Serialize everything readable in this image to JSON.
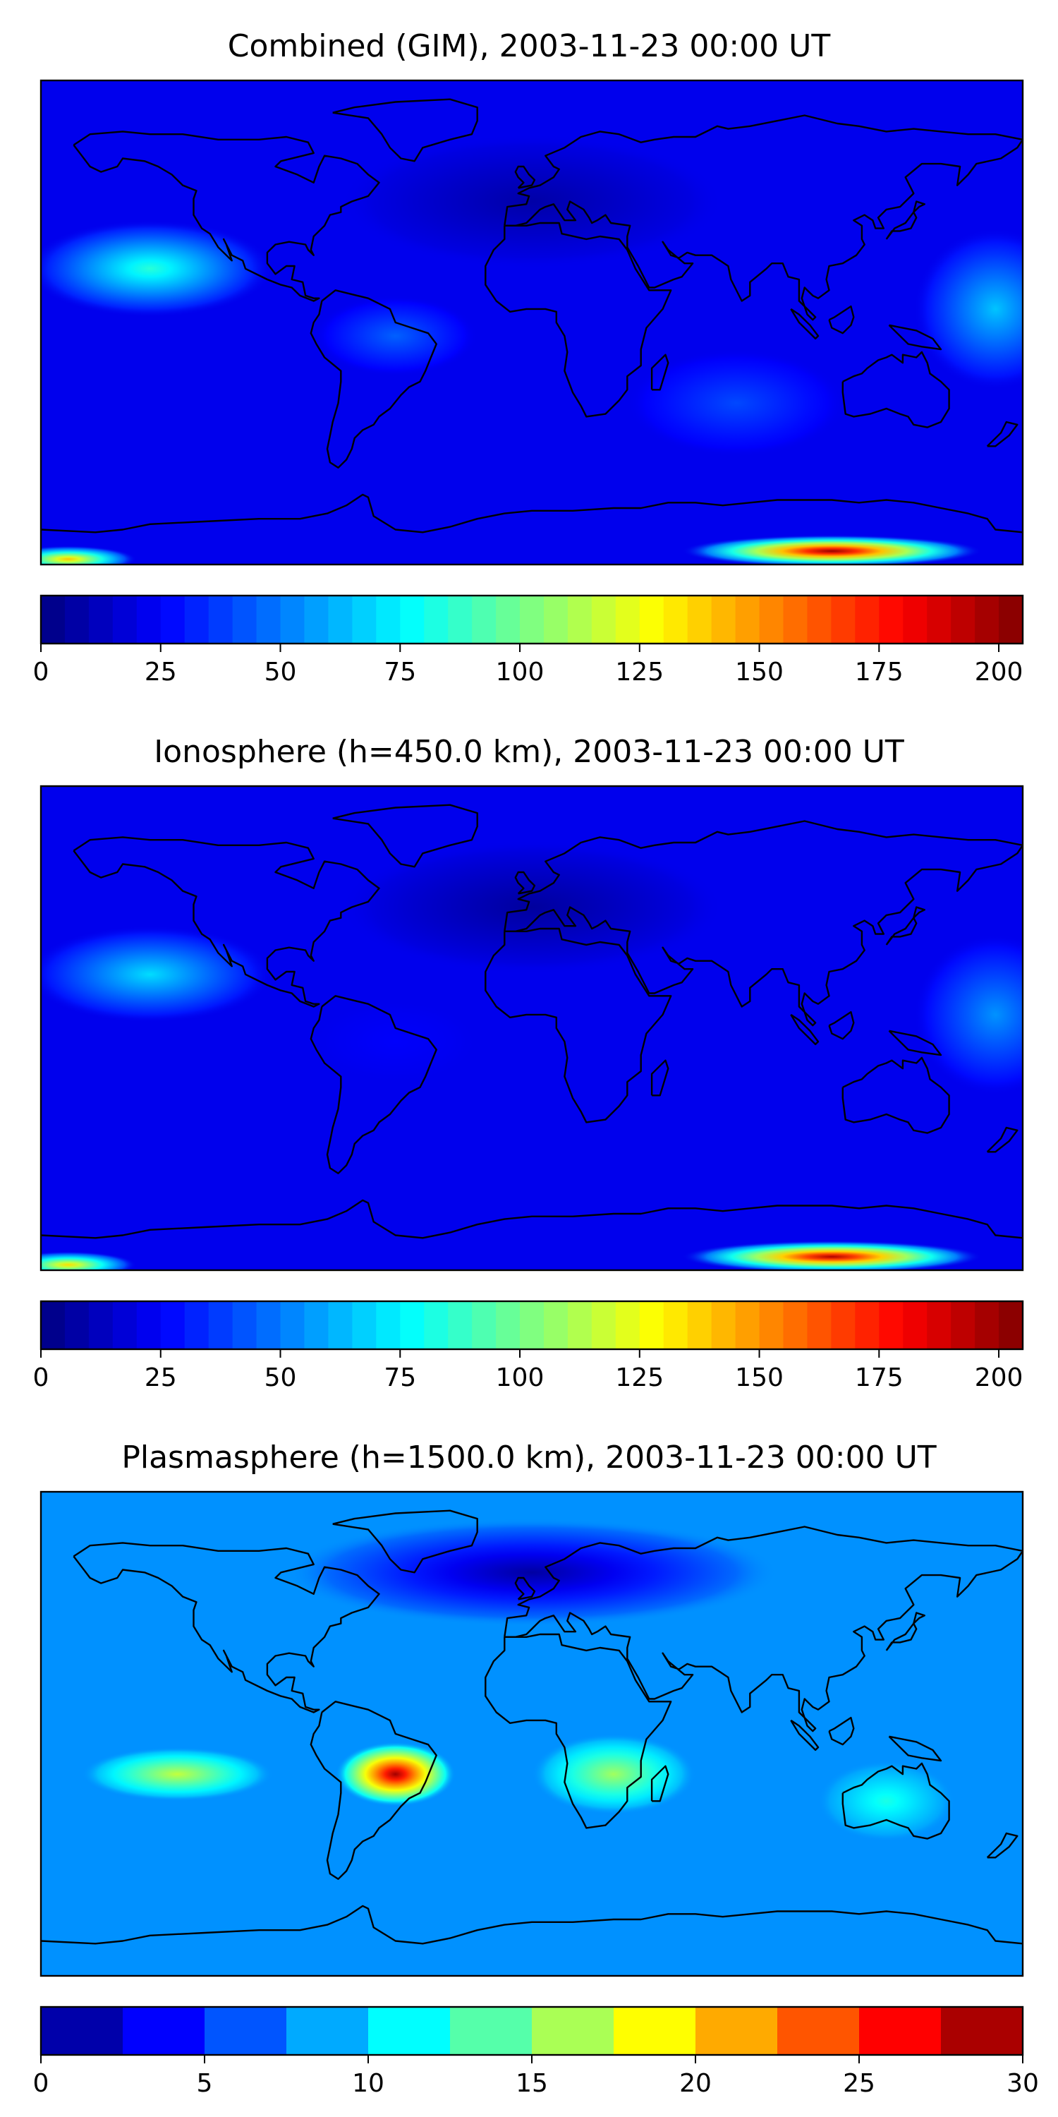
{
  "chart_data": [
    {
      "type": "heatmap",
      "title": "Combined (GIM), 2003-11-23 00:00 UT",
      "colorbar": {
        "min": 0,
        "max": 205,
        "step": 5,
        "ticks": [
          "0",
          "25",
          "50",
          "75",
          "100",
          "125",
          "150",
          "175",
          "200"
        ],
        "tick_values": [
          0,
          25,
          50,
          75,
          100,
          125,
          150,
          175,
          200
        ]
      },
      "features": [
        {
          "lon": -140,
          "lat": 20,
          "value": 85,
          "lon_width": 45,
          "lat_width": 18
        },
        {
          "lon": -50,
          "lat": -5,
          "value": 45,
          "lon_width": 30,
          "lat_width": 15
        },
        {
          "lon": 170,
          "lat": 5,
          "value": 65,
          "lon_width": 30,
          "lat_width": 30
        },
        {
          "lon": 75,
          "lat": -30,
          "value": 40,
          "lon_width": 40,
          "lat_width": 20
        },
        {
          "lon": 110,
          "lat": -85,
          "value": 200,
          "lon_width": 55,
          "lat_width": 6
        },
        {
          "lon": -170,
          "lat": -88,
          "value": 140,
          "lon_width": 25,
          "lat_width": 5
        },
        {
          "lon": 0,
          "lat": 45,
          "value": 8,
          "lon_width": 70,
          "lat_width": 25
        }
      ],
      "colormap": "jet"
    },
    {
      "type": "heatmap",
      "title": "Ionosphere  (h=450.0 km), 2003-11-23 00:00 UT",
      "colorbar": {
        "min": 0,
        "max": 205,
        "step": 5,
        "ticks": [
          "0",
          "25",
          "50",
          "75",
          "100",
          "125",
          "150",
          "175",
          "200"
        ],
        "tick_values": [
          0,
          25,
          50,
          75,
          100,
          125,
          150,
          175,
          200
        ]
      },
      "features": [
        {
          "lon": -140,
          "lat": 20,
          "value": 70,
          "lon_width": 45,
          "lat_width": 18
        },
        {
          "lon": -50,
          "lat": -5,
          "value": 25,
          "lon_width": 30,
          "lat_width": 15
        },
        {
          "lon": 170,
          "lat": 5,
          "value": 55,
          "lon_width": 30,
          "lat_width": 30
        },
        {
          "lon": 110,
          "lat": -85,
          "value": 195,
          "lon_width": 55,
          "lat_width": 6
        },
        {
          "lon": -170,
          "lat": -88,
          "value": 135,
          "lon_width": 25,
          "lat_width": 5
        },
        {
          "lon": 0,
          "lat": 45,
          "value": 6,
          "lon_width": 70,
          "lat_width": 25
        }
      ],
      "colormap": "jet"
    },
    {
      "type": "heatmap",
      "title": "Plasmasphere (h=1500.0 km), 2003-11-23 00:00 UT",
      "colorbar": {
        "min": 0,
        "max": 30,
        "step": 2.5,
        "ticks": [
          "0",
          "5",
          "10",
          "15",
          "20",
          "25",
          "30"
        ],
        "tick_values": [
          0,
          5,
          10,
          15,
          20,
          25,
          30
        ]
      },
      "features": [
        {
          "lon": -50,
          "lat": -15,
          "value": 29,
          "lon_width": 22,
          "lat_width": 12
        },
        {
          "lon": -130,
          "lat": -15,
          "value": 17,
          "lon_width": 35,
          "lat_width": 10
        },
        {
          "lon": 30,
          "lat": -15,
          "value": 16,
          "lon_width": 30,
          "lat_width": 15
        },
        {
          "lon": 130,
          "lat": -25,
          "value": 12,
          "lon_width": 25,
          "lat_width": 15
        },
        {
          "lon": 0,
          "lat": 60,
          "value": 1,
          "lon_width": 90,
          "lat_width": 20
        }
      ],
      "colormap": "jet"
    }
  ]
}
